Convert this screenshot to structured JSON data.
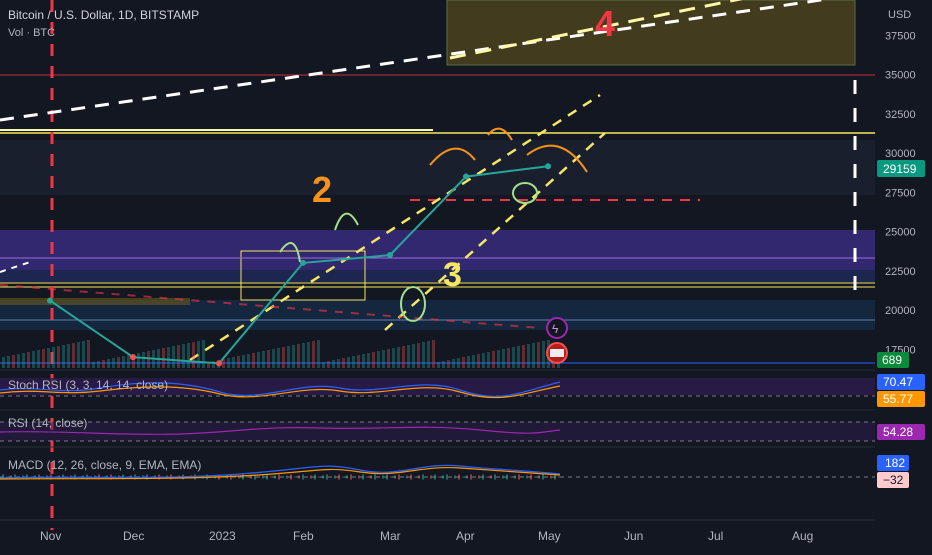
{
  "header": {
    "title": "Bitcoin / U.S. Dollar, 1D, BITSTAMP",
    "volume_label": "Vol · BTC"
  },
  "price_axis": {
    "currency": "USD",
    "ticks": [
      "37500",
      "35000",
      "32500",
      "30000",
      "27500",
      "25000",
      "22500",
      "20000",
      "17500"
    ],
    "last_price": "29159",
    "volume_badge": "689"
  },
  "time_axis": {
    "labels": [
      "Nov",
      "Dec",
      "2023",
      "Feb",
      "Mar",
      "Apr",
      "May",
      "Jun",
      "Jul",
      "Aug"
    ]
  },
  "annotations": {
    "wave_2": "2",
    "wave_3": "3",
    "wave_4": "4"
  },
  "indicators": {
    "stoch_rsi": {
      "label": "Stoch RSI (3, 3, 14, 14, close)",
      "k": "70.47",
      "d": "55.77"
    },
    "rsi": {
      "label": "RSI (14, close)",
      "value": "54.28"
    },
    "macd": {
      "label": "MACD (12, 26, close, 9, EMA, EMA)",
      "macd": "182",
      "signal": "−32"
    }
  },
  "colors": {
    "background": "#131722",
    "up": "#26a69a",
    "down": "#ef5350",
    "annotation_yellow": "#f5e663",
    "annotation_orange": "#f7931a",
    "annotation_red": "#f23645",
    "zone_purple": "#4a3a9c",
    "price_badge": "#089981"
  },
  "chart_data": {
    "type": "line",
    "title": "Bitcoin / U.S. Dollar, 1D, BITSTAMP",
    "xlabel": "",
    "ylabel": "",
    "ylim": [
      16000,
      40000
    ],
    "x": [
      "Nov",
      "Dec",
      "2023",
      "Feb",
      "Mar",
      "Apr",
      "May"
    ],
    "series": [
      {
        "values": [
          20600,
          17000,
          16600,
          23000,
          23500,
          28500,
          29159
        ]
      }
    ]
  }
}
